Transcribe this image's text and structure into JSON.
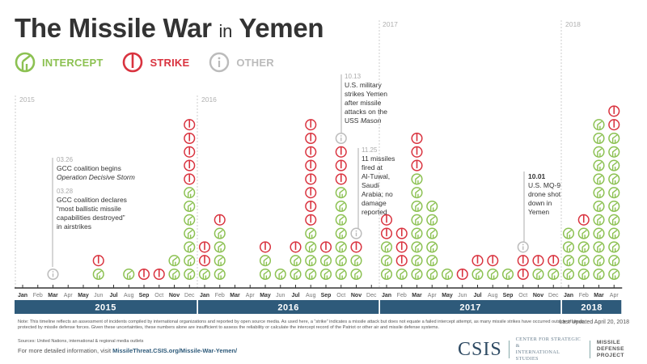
{
  "title": {
    "main_a": "The Missile War ",
    "connector": "in",
    "main_b": " Yemen"
  },
  "legend": [
    {
      "key": "intercept",
      "label": "INTERCEPT",
      "icon": "intercept-icon",
      "color": "#8cc152"
    },
    {
      "key": "strike",
      "label": "STRIKE",
      "icon": "strike-icon",
      "color": "#d9333f"
    },
    {
      "key": "other",
      "label": "OTHER",
      "icon": "info-icon",
      "color": "#bbbbbb"
    }
  ],
  "year_markers": [
    "2015",
    "2016",
    "2017",
    "2018"
  ],
  "annotations": {
    "a1": {
      "date": "03.26",
      "text_a": "GCC coalition begins",
      "text_b": "Operation Decisive Storm"
    },
    "a2": {
      "date": "03.28",
      "lines": [
        "GCC coalition declares",
        "“most ballistic missile",
        "capabilities destroyed”",
        "in airstrikes"
      ]
    },
    "a3": {
      "date": "10.13",
      "lines": [
        "U.S. military",
        "strikes Yemen",
        "after missile",
        "attacks on the"
      ],
      "last_a": "USS ",
      "last_b": "Mason"
    },
    "a4": {
      "date": "11.25",
      "lines": [
        "11 missiles",
        "fired at",
        "Al-Tuwal,",
        "Saudi",
        "Arabia; no",
        "damage",
        "reported"
      ]
    },
    "a5": {
      "date": "10.01",
      "lines": [
        "U.S. MQ-9",
        "drone shot",
        "down in",
        "Yemen"
      ]
    }
  },
  "chart_data": {
    "type": "stacked-icon-timeline",
    "title": "The Missile War in Yemen",
    "xlabel": "Month",
    "ylabel": "Incidents (one icon per incident)",
    "legend": [
      "Intercept",
      "Strike",
      "Other"
    ],
    "series_order_bottom_to_top": [
      "intercept",
      "strike",
      "other"
    ],
    "years": [
      {
        "year": "2015",
        "months": [
          "Jan",
          "Feb",
          "Mar",
          "Apr",
          "May",
          "Jun",
          "Jul",
          "Aug",
          "Sep",
          "Oct",
          "Nov",
          "Dec"
        ]
      },
      {
        "year": "2016",
        "months": [
          "Jan",
          "Feb",
          "Mar",
          "Apr",
          "May",
          "Jun",
          "Jul",
          "Aug",
          "Sep",
          "Oct",
          "Nov",
          "Dec"
        ]
      },
      {
        "year": "2017",
        "months": [
          "Jan",
          "Feb",
          "Mar",
          "Apr",
          "May",
          "Jun",
          "Jul",
          "Aug",
          "Sep",
          "Oct",
          "Nov",
          "Dec"
        ]
      },
      {
        "year": "2018",
        "months": [
          "Jan",
          "Feb",
          "Mar",
          "Apr"
        ]
      }
    ],
    "categories": [
      "2015-01",
      "2015-02",
      "2015-03",
      "2015-04",
      "2015-05",
      "2015-06",
      "2015-07",
      "2015-08",
      "2015-09",
      "2015-10",
      "2015-11",
      "2015-12",
      "2016-01",
      "2016-02",
      "2016-03",
      "2016-04",
      "2016-05",
      "2016-06",
      "2016-07",
      "2016-08",
      "2016-09",
      "2016-10",
      "2016-11",
      "2016-12",
      "2017-01",
      "2017-02",
      "2017-03",
      "2017-04",
      "2017-05",
      "2017-06",
      "2017-07",
      "2017-08",
      "2017-09",
      "2017-10",
      "2017-11",
      "2017-12",
      "2018-01",
      "2018-02",
      "2018-03",
      "2018-04"
    ],
    "series": [
      {
        "name": "Intercept",
        "values": [
          0,
          0,
          0,
          0,
          0,
          1,
          0,
          1,
          0,
          0,
          2,
          7,
          1,
          4,
          0,
          0,
          2,
          1,
          2,
          4,
          2,
          7,
          2,
          0,
          3,
          1,
          8,
          6,
          1,
          0,
          1,
          1,
          1,
          0,
          1,
          1,
          4,
          4,
          12,
          11
        ]
      },
      {
        "name": "Strike",
        "values": [
          0,
          0,
          0,
          0,
          0,
          1,
          0,
          0,
          1,
          1,
          0,
          5,
          2,
          1,
          0,
          0,
          1,
          0,
          1,
          8,
          1,
          3,
          1,
          0,
          2,
          3,
          3,
          0,
          0,
          1,
          1,
          1,
          0,
          2,
          1,
          1,
          0,
          1,
          0,
          2
        ]
      },
      {
        "name": "Other",
        "values": [
          0,
          0,
          1,
          0,
          0,
          0,
          0,
          0,
          0,
          0,
          0,
          0,
          0,
          0,
          0,
          0,
          0,
          0,
          0,
          0,
          0,
          1,
          1,
          0,
          0,
          0,
          0,
          0,
          0,
          0,
          0,
          0,
          0,
          1,
          0,
          0,
          0,
          0,
          0,
          0
        ]
      }
    ],
    "grid": false
  },
  "footer": {
    "note": "Note: This timeline reflects an assessment of incidents compiled by international organizations and reported by open source media. As used here, a “strike” indicates a missile attack but does not equate a failed intercept attempt, as many missile strikes have occurred outside of areas protected by missile defense forces. Given these uncertainties, these numbers alone are insufficient to assess the reliability or calculate the intercept record of the Patriot or other air and missile defense systems.",
    "sources": "Sources: United Nations, international & regional media outlets",
    "more_prefix": "For more detailed information, visit ",
    "more_link": "MissileThreat.CSIS.org/Missile-War-Yemen/",
    "updated": "Last Updated April 20, 2018",
    "logo": "CSIS",
    "org_line1": "CENTER FOR STRATEGIC &",
    "org_line2": "INTERNATIONAL STUDIES",
    "project_line1": "MISSILE DEFENSE",
    "project_line2": "PROJECT"
  }
}
